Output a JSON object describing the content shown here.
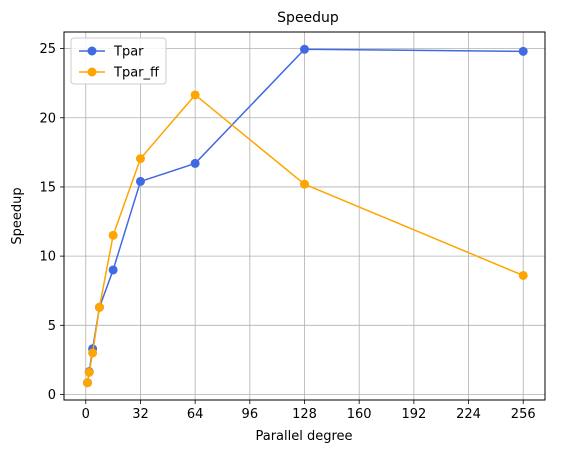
{
  "chart_data": {
    "type": "line",
    "title": "Speedup",
    "xlabel": "Parallel degree",
    "ylabel": "Speedup",
    "xlim": [
      -12.75,
      268.75
    ],
    "ylim": [
      -0.4,
      26.2
    ],
    "xticks": [
      0,
      32,
      64,
      96,
      128,
      160,
      192,
      224,
      256
    ],
    "yticks": [
      0,
      5,
      10,
      15,
      20,
      25
    ],
    "grid": true,
    "legend": "top-left",
    "series": [
      {
        "name": "Tpar",
        "color": "#4169e1",
        "x": [
          1,
          2,
          4,
          8,
          16,
          32,
          64,
          128,
          256
        ],
        "y": [
          0.85,
          1.65,
          3.3,
          6.3,
          9.0,
          15.4,
          16.7,
          24.95,
          24.8
        ]
      },
      {
        "name": "Tpar_ff",
        "color": "#ffa500",
        "x": [
          1,
          2,
          4,
          8,
          16,
          32,
          64,
          128,
          256
        ],
        "y": [
          0.85,
          1.6,
          3.0,
          6.3,
          11.5,
          17.05,
          21.65,
          15.2,
          8.6
        ]
      }
    ]
  }
}
